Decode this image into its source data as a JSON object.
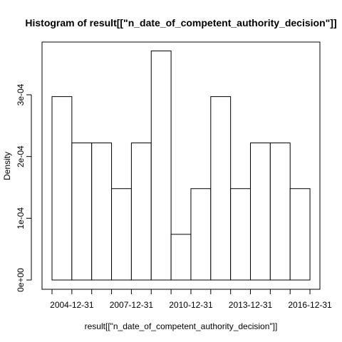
{
  "chart_data": {
    "type": "bar",
    "title": "Histogram of result[[\"n_date_of_competent_authority_decision\"]]",
    "xlabel": "result[[\"n_date_of_competent_authority_decision\"]]",
    "ylabel": "Density",
    "x_tick_labels": [
      "2004-12-31",
      "2007-12-31",
      "2010-12-31",
      "2013-12-31",
      "2016-12-31"
    ],
    "y_tick_labels": [
      "0e+00",
      "1e-04",
      "2e-04",
      "3e-04"
    ],
    "y_ticks": [
      0,
      0.0001,
      0.0002,
      0.0003
    ],
    "ylim": [
      0,
      0.00037
    ],
    "bin_count": 13,
    "values": [
      0.000297,
      0.000222,
      0.000222,
      0.000148,
      0.000222,
      0.000371,
      7.4e-05,
      0.000148,
      0.000297,
      0.000148,
      0.000222,
      0.000222,
      0.000148
    ],
    "grid": false
  }
}
